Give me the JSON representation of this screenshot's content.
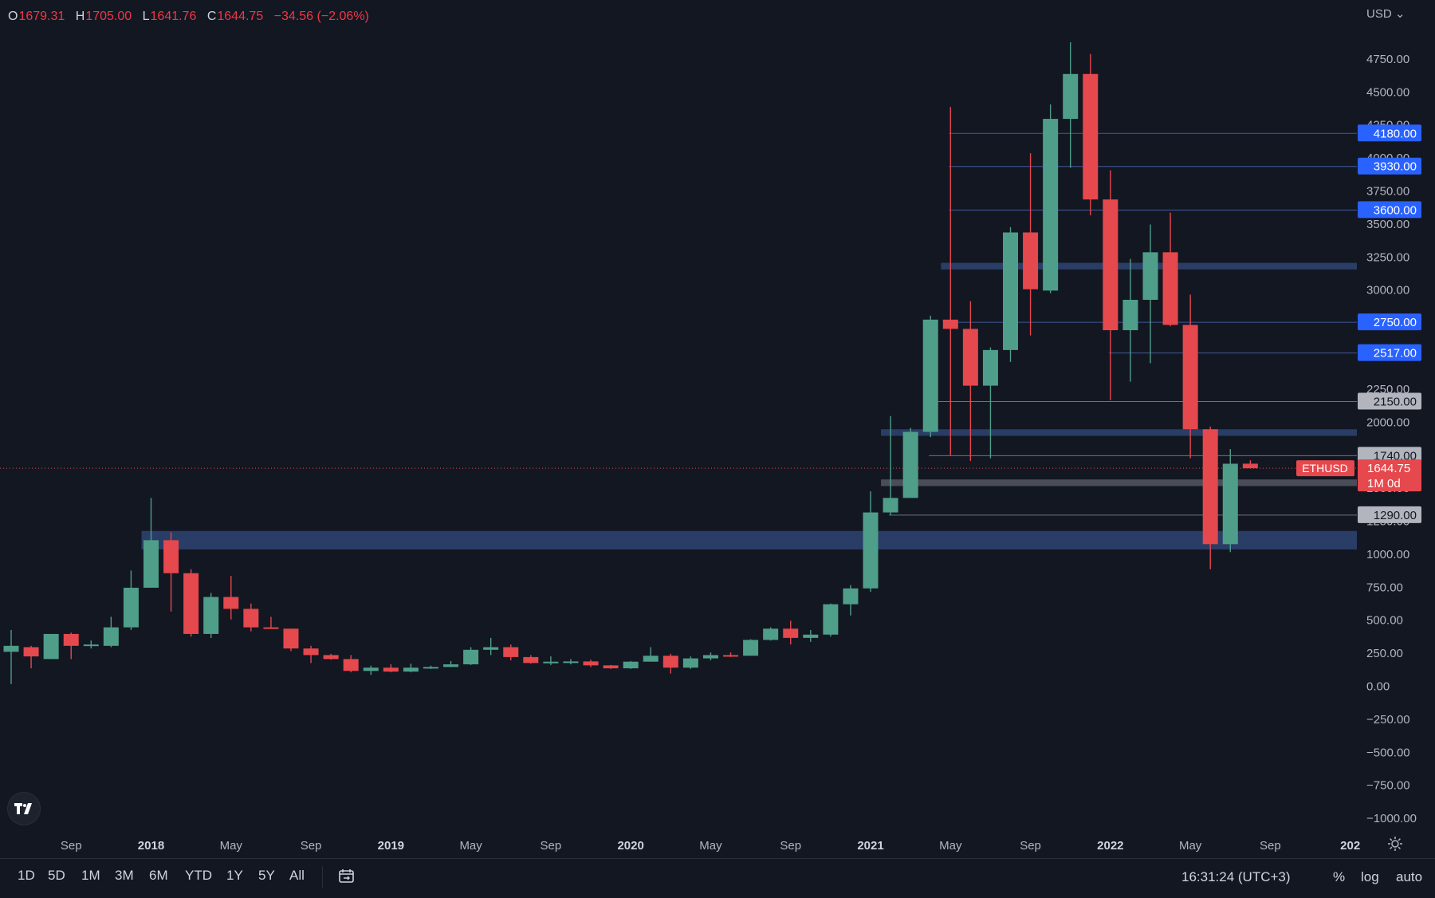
{
  "ohlc": {
    "o_label": "O",
    "o": "1679.31",
    "h_label": "H",
    "h": "1705.00",
    "l_label": "L",
    "l": "1641.76",
    "c_label": "C",
    "c": "1644.75",
    "change": "−34.56 (−2.06%)"
  },
  "currency": "USD",
  "chart_data": {
    "type": "candlestick",
    "symbol": "ETHUSD",
    "ylim": [
      -1100,
      5000
    ],
    "y_ticks": [
      4750,
      4500,
      4250,
      4000,
      3750,
      3500,
      3250,
      3000,
      2750,
      2500,
      2250,
      2000,
      1750,
      1500,
      1250,
      1000,
      750,
      500,
      250,
      0,
      -250,
      -500,
      -750,
      -1000
    ],
    "y_tick_labels": [
      "4750.00",
      "4500.00",
      "4250.00",
      "4000.00",
      "3750.00",
      "3500.00",
      "3250.00",
      "3000.00",
      "2750.00",
      "2500.00",
      "2250.00",
      "2000.00",
      "1750.00",
      "1500.00",
      "1250.00",
      "1000.00",
      "750.00",
      "500.00",
      "250.00",
      "0.00",
      "−250.00",
      "−500.00",
      "−750.00",
      "−1000.00"
    ],
    "x_labels": [
      {
        "month": "2017-09",
        "label": "Sep",
        "bold": false
      },
      {
        "month": "2018-01",
        "label": "2018",
        "bold": true
      },
      {
        "month": "2018-05",
        "label": "May",
        "bold": false
      },
      {
        "month": "2018-09",
        "label": "Sep",
        "bold": false
      },
      {
        "month": "2019-01",
        "label": "2019",
        "bold": true
      },
      {
        "month": "2019-05",
        "label": "May",
        "bold": false
      },
      {
        "month": "2019-09",
        "label": "Sep",
        "bold": false
      },
      {
        "month": "2020-01",
        "label": "2020",
        "bold": true
      },
      {
        "month": "2020-05",
        "label": "May",
        "bold": false
      },
      {
        "month": "2020-09",
        "label": "Sep",
        "bold": false
      },
      {
        "month": "2021-01",
        "label": "2021",
        "bold": true
      },
      {
        "month": "2021-05",
        "label": "May",
        "bold": false
      },
      {
        "month": "2021-09",
        "label": "Sep",
        "bold": false
      },
      {
        "month": "2022-01",
        "label": "2022",
        "bold": true
      },
      {
        "month": "2022-05",
        "label": "May",
        "bold": false
      },
      {
        "month": "2022-09",
        "label": "Sep",
        "bold": false
      },
      {
        "month": "2023-01",
        "label": "202",
        "bold": true
      }
    ],
    "candles": [
      {
        "month": "2017-06",
        "o": 255,
        "h": 420,
        "l": 10,
        "c": 300
      },
      {
        "month": "2017-07",
        "o": 290,
        "h": 300,
        "l": 130,
        "c": 220
      },
      {
        "month": "2017-08",
        "o": 200,
        "h": 390,
        "l": 200,
        "c": 390
      },
      {
        "month": "2017-09",
        "o": 390,
        "h": 400,
        "l": 200,
        "c": 300
      },
      {
        "month": "2017-10",
        "o": 300,
        "h": 340,
        "l": 280,
        "c": 310
      },
      {
        "month": "2017-11",
        "o": 300,
        "h": 520,
        "l": 290,
        "c": 440
      },
      {
        "month": "2017-12",
        "o": 440,
        "h": 870,
        "l": 420,
        "c": 740
      },
      {
        "month": "2018-01",
        "o": 740,
        "h": 1420,
        "l": 740,
        "c": 1100
      },
      {
        "month": "2018-02",
        "o": 1100,
        "h": 1160,
        "l": 560,
        "c": 850
      },
      {
        "month": "2018-03",
        "o": 850,
        "h": 880,
        "l": 370,
        "c": 390
      },
      {
        "month": "2018-04",
        "o": 390,
        "h": 700,
        "l": 360,
        "c": 670
      },
      {
        "month": "2018-05",
        "o": 670,
        "h": 830,
        "l": 500,
        "c": 580
      },
      {
        "month": "2018-06",
        "o": 580,
        "h": 620,
        "l": 410,
        "c": 440
      },
      {
        "month": "2018-07",
        "o": 440,
        "h": 520,
        "l": 430,
        "c": 430
      },
      {
        "month": "2018-08",
        "o": 430,
        "h": 430,
        "l": 260,
        "c": 280
      },
      {
        "month": "2018-09",
        "o": 280,
        "h": 300,
        "l": 170,
        "c": 230
      },
      {
        "month": "2018-10",
        "o": 230,
        "h": 240,
        "l": 195,
        "c": 200
      },
      {
        "month": "2018-11",
        "o": 200,
        "h": 230,
        "l": 100,
        "c": 110
      },
      {
        "month": "2018-12",
        "o": 110,
        "h": 150,
        "l": 80,
        "c": 135
      },
      {
        "month": "2019-01",
        "o": 135,
        "h": 160,
        "l": 100,
        "c": 105
      },
      {
        "month": "2019-02",
        "o": 105,
        "h": 165,
        "l": 100,
        "c": 135
      },
      {
        "month": "2019-03",
        "o": 135,
        "h": 150,
        "l": 125,
        "c": 140
      },
      {
        "month": "2019-04",
        "o": 140,
        "h": 185,
        "l": 140,
        "c": 160
      },
      {
        "month": "2019-05",
        "o": 160,
        "h": 290,
        "l": 155,
        "c": 270
      },
      {
        "month": "2019-06",
        "o": 270,
        "h": 360,
        "l": 230,
        "c": 290
      },
      {
        "month": "2019-07",
        "o": 290,
        "h": 310,
        "l": 190,
        "c": 215
      },
      {
        "month": "2019-08",
        "o": 215,
        "h": 230,
        "l": 165,
        "c": 170
      },
      {
        "month": "2019-09",
        "o": 170,
        "h": 220,
        "l": 155,
        "c": 180
      },
      {
        "month": "2019-10",
        "o": 180,
        "h": 200,
        "l": 160,
        "c": 182
      },
      {
        "month": "2019-11",
        "o": 182,
        "h": 195,
        "l": 140,
        "c": 152
      },
      {
        "month": "2019-12",
        "o": 152,
        "h": 155,
        "l": 125,
        "c": 130
      },
      {
        "month": "2020-01",
        "o": 130,
        "h": 185,
        "l": 125,
        "c": 180
      },
      {
        "month": "2020-02",
        "o": 180,
        "h": 290,
        "l": 210,
        "c": 225
      },
      {
        "month": "2020-03",
        "o": 225,
        "h": 240,
        "l": 90,
        "c": 135
      },
      {
        "month": "2020-04",
        "o": 135,
        "h": 220,
        "l": 125,
        "c": 205
      },
      {
        "month": "2020-05",
        "o": 205,
        "h": 250,
        "l": 190,
        "c": 230
      },
      {
        "month": "2020-06",
        "o": 230,
        "h": 250,
        "l": 215,
        "c": 225
      },
      {
        "month": "2020-07",
        "o": 225,
        "h": 350,
        "l": 225,
        "c": 345
      },
      {
        "month": "2020-08",
        "o": 345,
        "h": 440,
        "l": 340,
        "c": 430
      },
      {
        "month": "2020-09",
        "o": 430,
        "h": 490,
        "l": 310,
        "c": 360
      },
      {
        "month": "2020-10",
        "o": 360,
        "h": 420,
        "l": 330,
        "c": 385
      },
      {
        "month": "2020-11",
        "o": 385,
        "h": 620,
        "l": 370,
        "c": 615
      },
      {
        "month": "2020-12",
        "o": 615,
        "h": 760,
        "l": 530,
        "c": 735
      },
      {
        "month": "2021-01",
        "o": 735,
        "h": 1470,
        "l": 710,
        "c": 1310
      },
      {
        "month": "2021-02",
        "o": 1310,
        "h": 2040,
        "l": 1290,
        "c": 1420
      },
      {
        "month": "2021-03",
        "o": 1420,
        "h": 1950,
        "l": 1420,
        "c": 1920
      },
      {
        "month": "2021-04",
        "o": 1920,
        "h": 2800,
        "l": 1880,
        "c": 2770
      },
      {
        "month": "2021-05",
        "o": 2770,
        "h": 4380,
        "l": 1740,
        "c": 2700
      },
      {
        "month": "2021-06",
        "o": 2700,
        "h": 2910,
        "l": 1700,
        "c": 2270
      },
      {
        "month": "2021-07",
        "o": 2270,
        "h": 2560,
        "l": 1720,
        "c": 2540
      },
      {
        "month": "2021-08",
        "o": 2540,
        "h": 3470,
        "l": 2450,
        "c": 3430
      },
      {
        "month": "2021-09",
        "o": 3430,
        "h": 4030,
        "l": 2650,
        "c": 3000
      },
      {
        "month": "2021-10",
        "o": 2990,
        "h": 4400,
        "l": 2970,
        "c": 4290
      },
      {
        "month": "2021-11",
        "o": 4290,
        "h": 4870,
        "l": 3920,
        "c": 4630
      },
      {
        "month": "2021-12",
        "o": 4630,
        "h": 4780,
        "l": 3560,
        "c": 3680
      },
      {
        "month": "2022-01",
        "o": 3680,
        "h": 3900,
        "l": 2160,
        "c": 2690
      },
      {
        "month": "2022-02",
        "o": 2690,
        "h": 3230,
        "l": 2300,
        "c": 2920
      },
      {
        "month": "2022-03",
        "o": 2920,
        "h": 3490,
        "l": 2440,
        "c": 3280
      },
      {
        "month": "2022-04",
        "o": 3280,
        "h": 3580,
        "l": 2720,
        "c": 2730
      },
      {
        "month": "2022-05",
        "o": 2730,
        "h": 2960,
        "l": 1720,
        "c": 1940
      },
      {
        "month": "2022-06",
        "o": 1940,
        "h": 1960,
        "l": 880,
        "c": 1070
      },
      {
        "month": "2022-07",
        "o": 1070,
        "h": 1790,
        "l": 1010,
        "c": 1679
      },
      {
        "month": "2022-08",
        "o": 1679.31,
        "h": 1705,
        "l": 1641.76,
        "c": 1644.75
      }
    ],
    "price_line": {
      "value": 1644.75,
      "symbol": "ETHUSD",
      "price": "1644.75",
      "countdown": "1M 0d"
    },
    "levels": [
      {
        "value": 4180,
        "label": "4180.00",
        "style": "blue",
        "from": "2021-05"
      },
      {
        "value": 3930,
        "label": "3930.00",
        "style": "blue",
        "from": "2021-05"
      },
      {
        "value": 3600,
        "label": "3600.00",
        "style": "blue",
        "from": "2021-05"
      },
      {
        "value": 2750,
        "label": "2750.00",
        "style": "blue",
        "from": "2021-05"
      },
      {
        "value": 2517,
        "label": "2517.00",
        "style": "blue",
        "from": "2022-01"
      },
      {
        "value": 2150,
        "label": "2150.00",
        "style": "gray",
        "from": "2021-04"
      },
      {
        "value": 1740,
        "label": "1740.00",
        "style": "gray",
        "from": "2021-04"
      },
      {
        "value": 1290,
        "label": "1290.00",
        "style": "gray",
        "from": "2021-02"
      }
    ],
    "zones": [
      {
        "from_value": 3150,
        "to_value": 3200,
        "from": "2021-05",
        "color": "blue"
      },
      {
        "from_value": 1890,
        "to_value": 1940,
        "from": "2021-02",
        "color": "blue"
      },
      {
        "from_value": 1510,
        "to_value": 1560,
        "from": "2021-02",
        "color": "gray"
      },
      {
        "from_value": 1030,
        "to_value": 1170,
        "from": "2018-01",
        "color": "blue"
      }
    ],
    "colors": {
      "up": "#4f9e8a",
      "down": "#e5484d",
      "background": "#131722",
      "grid": "#2a2e39",
      "blue_label": "#2962ff",
      "gray_label": "#b2b5be"
    }
  },
  "toolbar": {
    "timeframes": [
      "1D",
      "5D",
      "1M",
      "3M",
      "6M",
      "YTD",
      "1Y",
      "5Y",
      "All"
    ],
    "clock": "16:31:24 (UTC+3)",
    "percent": "%",
    "log": "log",
    "auto": "auto"
  },
  "icons": {
    "logo": "tradingview-logo-icon",
    "calendar": "goto-date-icon",
    "settings": "gear-icon"
  }
}
